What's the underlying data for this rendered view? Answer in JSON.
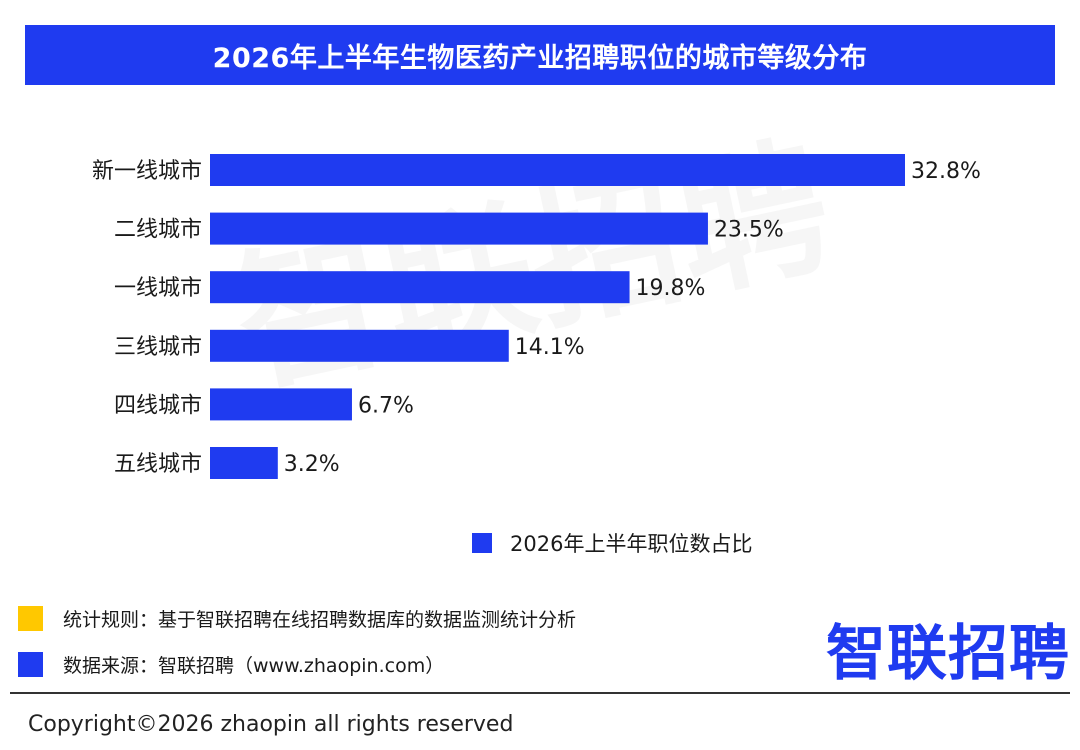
{
  "header": {
    "title": "2026年上半年生物医药产业招聘职位的城市等级分布"
  },
  "watermark": "智联招聘",
  "chart_data": {
    "type": "bar",
    "orientation": "horizontal",
    "title": "2026年上半年生物医药产业招聘职位的城市等级分布",
    "categories": [
      "新一线城市",
      "二线城市",
      "一线城市",
      "三线城市",
      "四线城市",
      "五线城市"
    ],
    "series": [
      {
        "name": "2026年上半年职位数占比",
        "values": [
          32.8,
          23.5,
          19.8,
          14.1,
          6.7,
          3.2
        ],
        "unit": "%"
      }
    ],
    "value_labels": [
      "32.8%",
      "23.5%",
      "19.8%",
      "14.1%",
      "6.7%",
      "3.2%"
    ],
    "xlim": [
      0,
      32.8
    ],
    "grid": false,
    "legend": "bottom",
    "bar_color": "#1f3bf0"
  },
  "legend": {
    "label": "2026年上半年职位数占比"
  },
  "notes": {
    "rule": "统计规则：基于智联招聘在线招聘数据库的数据监测统计分析",
    "source": "数据来源：智联招聘（www.zhaopin.com）",
    "rule_color": "#ffc800",
    "source_color": "#1f3bf0"
  },
  "brand": {
    "logo_text": "智联招聘"
  },
  "footer": {
    "copyright": "Copyright©2026 zhaopin all rights reserved"
  }
}
